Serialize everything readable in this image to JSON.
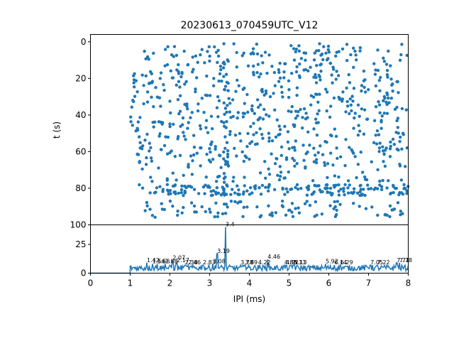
{
  "chart_data": [
    {
      "type": "scatter",
      "title": "20230613_070459UTC_V12",
      "xlabel": "",
      "ylabel": "t (s)",
      "xlim": [
        0,
        8
      ],
      "ylim": [
        100,
        -4
      ],
      "y_inverted": true,
      "yticks": [
        0,
        20,
        40,
        60,
        80,
        100
      ],
      "color": "#1f77b4",
      "marker": "circle",
      "grid": false,
      "point_density_estimate": "approx. 1000 points spanning IPI 1.0-8.0 ms; denser bands near t=18-70 s and t=80-95 s"
    },
    {
      "type": "line",
      "title": "",
      "xlabel": "IPI (ms)",
      "ylabel": "",
      "xlim": [
        0,
        8
      ],
      "ylim": [
        0,
        42
      ],
      "xticks": [
        0,
        1,
        2,
        3,
        4,
        5,
        6,
        7,
        8
      ],
      "yticks": [
        0,
        25
      ],
      "color": "#1f77b4",
      "grid": false,
      "peaks": [
        {
          "x": 3.4,
          "y": 40,
          "label": "3.4"
        },
        {
          "x": 3.19,
          "y": 17,
          "label": "3.19"
        },
        {
          "x": 4.46,
          "y": 12,
          "label": "4.46"
        },
        {
          "x": 2.07,
          "y": 11,
          "label": "2.07"
        },
        {
          "x": 2.17,
          "y": 9,
          "label": "2.17"
        },
        {
          "x": 1.42,
          "y": 9,
          "label": "1.42"
        },
        {
          "x": 1.56,
          "y": 8,
          "label": "1.56"
        },
        {
          "x": 1.68,
          "y": 8,
          "label": "1.68"
        },
        {
          "x": 1.88,
          "y": 8,
          "label": "1.88"
        },
        {
          "x": 2.38,
          "y": 7,
          "label": "2.38"
        },
        {
          "x": 2.46,
          "y": 7,
          "label": "2.46"
        },
        {
          "x": 2.83,
          "y": 7,
          "label": "2.83"
        },
        {
          "x": 3.08,
          "y": 8,
          "label": "3.08"
        },
        {
          "x": 3.78,
          "y": 7,
          "label": "3.78"
        },
        {
          "x": 3.89,
          "y": 7,
          "label": "3.89"
        },
        {
          "x": 4.22,
          "y": 7,
          "label": "4.22"
        },
        {
          "x": 4.88,
          "y": 7,
          "label": "4.88"
        },
        {
          "x": 4.92,
          "y": 7,
          "label": "4.92"
        },
        {
          "x": 5.11,
          "y": 7,
          "label": "5.11"
        },
        {
          "x": 5.13,
          "y": 7,
          "label": "5.13"
        },
        {
          "x": 5.92,
          "y": 8,
          "label": "5.92"
        },
        {
          "x": 6.14,
          "y": 7,
          "label": "6.14"
        },
        {
          "x": 6.29,
          "y": 7,
          "label": "6.29"
        },
        {
          "x": 7.05,
          "y": 7,
          "label": "7.05"
        },
        {
          "x": 7.22,
          "y": 7,
          "label": "7.22"
        },
        {
          "x": 7.71,
          "y": 9,
          "label": "7.71"
        },
        {
          "x": 7.78,
          "y": 9,
          "label": "7.78"
        }
      ]
    }
  ]
}
